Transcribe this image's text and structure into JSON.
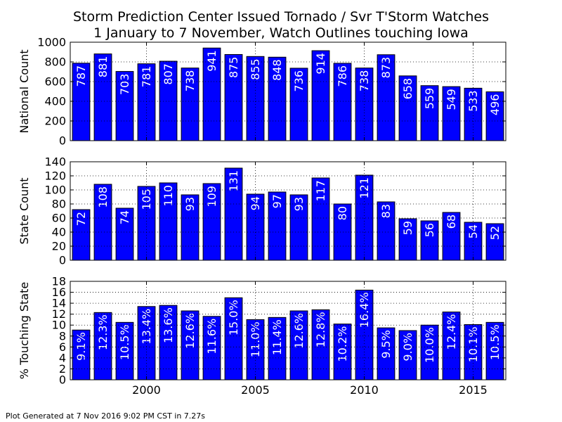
{
  "title_line1": "Storm Prediction Center Issued Tornado / Svr T'Storm Watches",
  "title_line2": "1 January to 7 November, Watch Outlines touching Iowa",
  "footer": "Plot Generated at 7 Nov 2016 9:02 PM CST in 7.27s",
  "colors": {
    "bar": "#0000ff",
    "bar_edge": "#000000",
    "label": "#ffffff"
  },
  "chart_data": [
    {
      "type": "bar",
      "ylabel": "National Count",
      "ylim": [
        0,
        1000
      ],
      "yticks": [
        0,
        200,
        400,
        600,
        800,
        1000
      ],
      "x": [
        1997,
        1998,
        1999,
        2000,
        2001,
        2002,
        2003,
        2004,
        2005,
        2006,
        2007,
        2008,
        2009,
        2010,
        2011,
        2012,
        2013,
        2014,
        2015,
        2016
      ],
      "values": [
        787,
        881,
        703,
        781,
        807,
        738,
        941,
        875,
        855,
        848,
        736,
        914,
        786,
        738,
        873,
        658,
        559,
        549,
        533,
        496
      ],
      "labels": [
        "787",
        "881",
        "703",
        "781",
        "807",
        "738",
        "941",
        "875",
        "855",
        "848",
        "736",
        "914",
        "786",
        "738",
        "873",
        "658",
        "559",
        "549",
        "533",
        "496"
      ],
      "grid": true
    },
    {
      "type": "bar",
      "ylabel": "State Count",
      "ylim": [
        0,
        140
      ],
      "yticks": [
        0,
        20,
        40,
        60,
        80,
        100,
        120,
        140
      ],
      "x": [
        1997,
        1998,
        1999,
        2000,
        2001,
        2002,
        2003,
        2004,
        2005,
        2006,
        2007,
        2008,
        2009,
        2010,
        2011,
        2012,
        2013,
        2014,
        2015,
        2016
      ],
      "values": [
        72,
        108,
        74,
        105,
        110,
        93,
        109,
        131,
        94,
        97,
        93,
        117,
        80,
        121,
        83,
        59,
        56,
        68,
        54,
        52
      ],
      "labels": [
        "72",
        "108",
        "74",
        "105",
        "110",
        "93",
        "109",
        "131",
        "94",
        "97",
        "93",
        "117",
        "80",
        "121",
        "83",
        "59",
        "56",
        "68",
        "54",
        "52"
      ],
      "grid": true
    },
    {
      "type": "bar",
      "ylabel": "% Touching State",
      "ylim": [
        0,
        18
      ],
      "yticks": [
        0,
        2,
        4,
        6,
        8,
        10,
        12,
        14,
        16,
        18
      ],
      "xticks": [
        2000,
        2005,
        2010,
        2015
      ],
      "x": [
        1997,
        1998,
        1999,
        2000,
        2001,
        2002,
        2003,
        2004,
        2005,
        2006,
        2007,
        2008,
        2009,
        2010,
        2011,
        2012,
        2013,
        2014,
        2015,
        2016
      ],
      "values": [
        9.1,
        12.3,
        10.5,
        13.4,
        13.6,
        12.6,
        11.6,
        15.0,
        11.0,
        11.4,
        12.6,
        12.8,
        10.2,
        16.4,
        9.5,
        9.0,
        10.0,
        12.4,
        10.1,
        10.5
      ],
      "labels": [
        "9.1%",
        "12.3%",
        "10.5%",
        "13.4%",
        "13.6%",
        "12.6%",
        "11.6%",
        "15.0%",
        "11.0%",
        "11.4%",
        "12.6%",
        "12.8%",
        "10.2%",
        "16.4%",
        "9.5%",
        "9.0%",
        "10.0%",
        "12.4%",
        "10.1%",
        "10.5%"
      ],
      "grid": true
    }
  ]
}
